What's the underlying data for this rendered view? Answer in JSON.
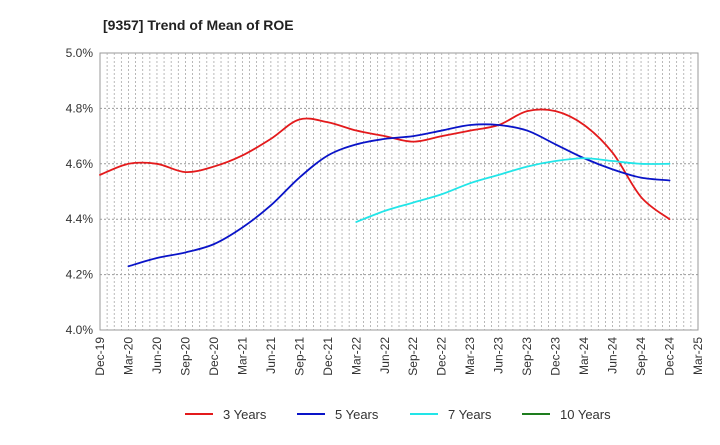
{
  "chart_data": {
    "type": "line",
    "title": "[9357]  Trend of Mean of ROE",
    "xlabel": "",
    "ylabel": "",
    "ylim": [
      4.0,
      5.0
    ],
    "ytick_values": [
      4.0,
      4.2,
      4.4,
      4.6,
      4.8,
      5.0
    ],
    "ytick_labels": [
      "4.0%",
      "4.2%",
      "4.4%",
      "4.6%",
      "4.8%",
      "5.0%"
    ],
    "categories": [
      "Dec-19",
      "Mar-20",
      "Jun-20",
      "Sep-20",
      "Dec-20",
      "Mar-21",
      "Jun-21",
      "Sep-21",
      "Dec-21",
      "Mar-22",
      "Jun-22",
      "Sep-22",
      "Dec-22",
      "Mar-23",
      "Jun-23",
      "Sep-23",
      "Dec-23",
      "Mar-24",
      "Jun-24",
      "Sep-24",
      "Dec-24",
      "Mar-25"
    ],
    "grid": true,
    "legend_position": "bottom",
    "series": [
      {
        "name": "3 Years",
        "color": "#e31a1c",
        "values": [
          4.56,
          4.6,
          4.6,
          4.57,
          4.59,
          4.63,
          4.69,
          4.76,
          4.75,
          4.72,
          4.7,
          4.68,
          4.7,
          4.72,
          4.74,
          4.79,
          4.79,
          4.74,
          4.64,
          4.48,
          4.4,
          null
        ]
      },
      {
        "name": "5 Years",
        "color": "#0a14c8",
        "values": [
          null,
          4.23,
          4.26,
          4.28,
          4.31,
          4.37,
          4.45,
          4.55,
          4.63,
          4.67,
          4.69,
          4.7,
          4.72,
          4.74,
          4.74,
          4.72,
          4.67,
          4.62,
          4.58,
          4.55,
          4.54,
          null
        ]
      },
      {
        "name": "7 Years",
        "color": "#22e5e8",
        "values": [
          null,
          null,
          null,
          null,
          null,
          null,
          null,
          null,
          null,
          4.39,
          4.43,
          4.46,
          4.49,
          4.53,
          4.56,
          4.59,
          4.61,
          4.62,
          4.61,
          4.6,
          4.6,
          null
        ]
      },
      {
        "name": "10 Years",
        "color": "#1e7d1e",
        "values": [
          null,
          null,
          null,
          null,
          null,
          null,
          null,
          null,
          null,
          null,
          null,
          null,
          null,
          null,
          null,
          null,
          null,
          null,
          null,
          null,
          null,
          null
        ]
      }
    ]
  }
}
